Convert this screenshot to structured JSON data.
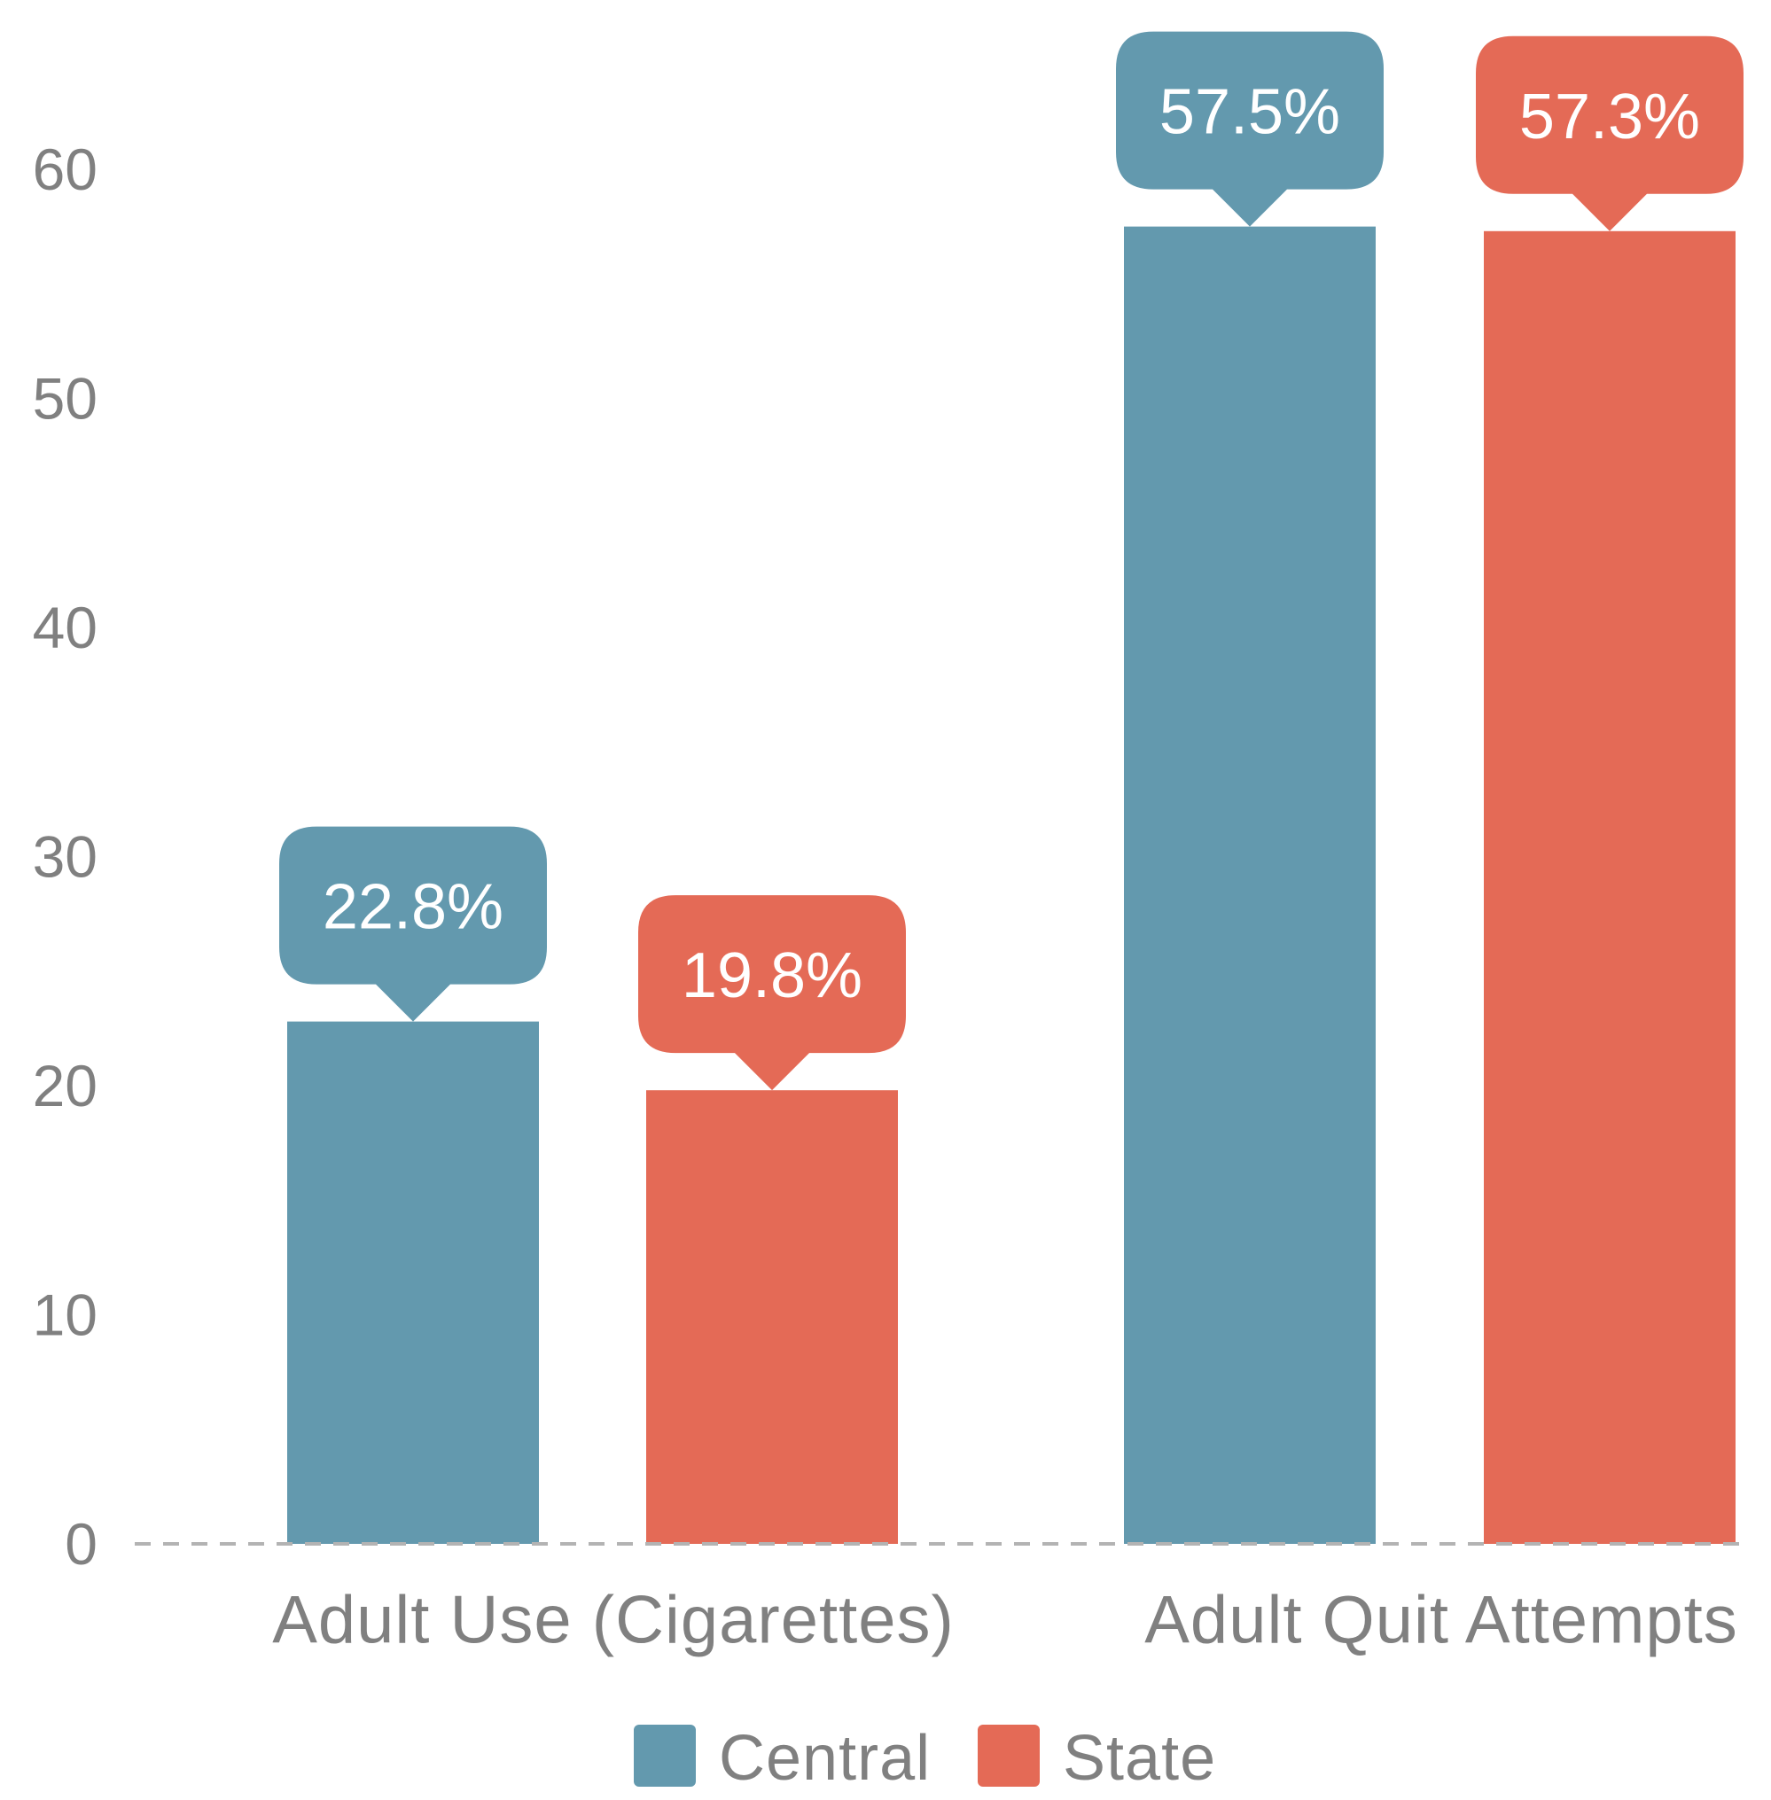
{
  "chart_data": {
    "type": "bar",
    "categories": [
      "Adult Use (Cigarettes)",
      "Adult Quit Attempts"
    ],
    "series": [
      {
        "name": "Central",
        "values": [
          22.8,
          57.5
        ],
        "labels": [
          "22.8%",
          "57.5%"
        ],
        "color": "#6399ae"
      },
      {
        "name": "State",
        "values": [
          19.8,
          57.3
        ],
        "labels": [
          "19.8%",
          "57.3%"
        ],
        "color": "#e46a56"
      }
    ],
    "ylim": [
      0,
      60
    ],
    "yticks": [
      "0",
      "10",
      "20",
      "30",
      "40",
      "50",
      "60"
    ],
    "grid": false,
    "baseline": "dashed",
    "legend": "bottom-center",
    "colors": {
      "axis_text": "#808080",
      "baseline": "#b3b3b3",
      "label_text": "#ffffff"
    }
  }
}
